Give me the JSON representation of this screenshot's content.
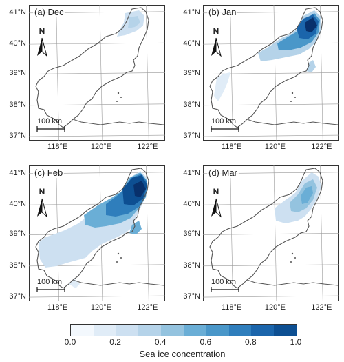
{
  "panels": [
    {
      "label": "(a) Dec",
      "north": "N",
      "scale": "100 km",
      "intensity": "dec"
    },
    {
      "label": "(b) Jan",
      "north": "N",
      "scale": "100 km",
      "intensity": "jan"
    },
    {
      "label": "(c) Feb",
      "north": "N",
      "scale": "100 km",
      "intensity": "feb"
    },
    {
      "label": "(d) Mar",
      "north": "N",
      "scale": "100 km",
      "intensity": "mar"
    }
  ],
  "lat_ticks": [
    "41°N",
    "40°N",
    "39°N",
    "38°N",
    "37°N"
  ],
  "lon_ticks": [
    "118°E",
    "120°E",
    "122°E"
  ],
  "colorbar": {
    "ticks": [
      "0.0",
      "0.2",
      "0.4",
      "0.6",
      "0.8",
      "1.0"
    ],
    "label": "Sea ice concentration",
    "colors": [
      "#f3f8fd",
      "#e0ecf7",
      "#cde0f1",
      "#b5d3e9",
      "#94c3df",
      "#6aaed6",
      "#4a97c9",
      "#2f7ebc",
      "#1b65ab",
      "#0d4f92",
      "#08306b"
    ]
  }
}
